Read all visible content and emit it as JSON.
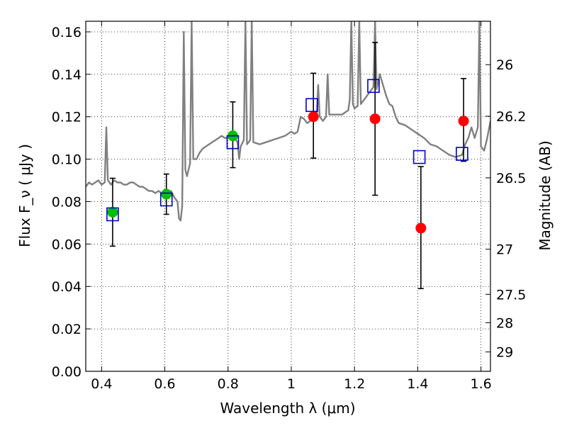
{
  "chart_data": {
    "type": "scatter",
    "xlabel": "Wavelength  λ (μm)",
    "ylabel": "Flux  F_ν  ( μJy )",
    "ylabel_right": "Magnitude (AB)",
    "xlim": [
      0.35,
      1.63
    ],
    "ylim": [
      0.0,
      0.165
    ],
    "grid": true,
    "x_ticks": [
      0.4,
      0.6,
      0.8,
      1.0,
      1.2,
      1.4,
      1.6
    ],
    "x_tick_labels": [
      "0.4",
      "0.6",
      "0.8",
      "1",
      "1.2",
      "1.4",
      "1.6"
    ],
    "y_ticks": [
      0.0,
      0.02,
      0.04,
      0.06,
      0.08,
      0.1,
      0.12,
      0.14,
      0.16
    ],
    "y_tick_labels": [
      "0.00",
      "0.02",
      "0.04",
      "0.06",
      "0.08",
      "0.10",
      "0.12",
      "0.14",
      "0.16"
    ],
    "mag_ticks": [
      26,
      26.2,
      26.5,
      27,
      27.5,
      28,
      29
    ],
    "mag_tick_labels": [
      "26",
      "26.2",
      "26.5",
      "27",
      "27.5",
      "28",
      "29"
    ],
    "model_spectrum": {
      "name": "model SED",
      "color": "#808080",
      "points": [
        [
          0.35,
          0.087
        ],
        [
          0.36,
          0.089
        ],
        [
          0.37,
          0.088
        ],
        [
          0.38,
          0.089
        ],
        [
          0.39,
          0.09
        ],
        [
          0.4,
          0.088
        ],
        [
          0.41,
          0.089
        ],
        [
          0.415,
          0.115
        ],
        [
          0.42,
          0.09
        ],
        [
          0.43,
          0.088
        ],
        [
          0.44,
          0.09
        ],
        [
          0.45,
          0.089
        ],
        [
          0.46,
          0.089
        ],
        [
          0.47,
          0.088
        ],
        [
          0.48,
          0.088
        ],
        [
          0.49,
          0.089
        ],
        [
          0.5,
          0.089
        ],
        [
          0.51,
          0.088
        ],
        [
          0.52,
          0.087
        ],
        [
          0.53,
          0.087
        ],
        [
          0.54,
          0.086
        ],
        [
          0.55,
          0.085
        ],
        [
          0.56,
          0.085
        ],
        [
          0.57,
          0.084
        ],
        [
          0.58,
          0.085
        ],
        [
          0.59,
          0.084
        ],
        [
          0.6,
          0.083
        ],
        [
          0.61,
          0.083
        ],
        [
          0.62,
          0.085
        ],
        [
          0.63,
          0.082
        ],
        [
          0.64,
          0.08
        ],
        [
          0.645,
          0.072
        ],
        [
          0.65,
          0.071
        ],
        [
          0.655,
          0.078
        ],
        [
          0.66,
          0.16
        ],
        [
          0.665,
          0.095
        ],
        [
          0.67,
          0.092
        ],
        [
          0.68,
          0.098
        ],
        [
          0.685,
          0.165
        ],
        [
          0.69,
          0.1
        ],
        [
          0.7,
          0.1
        ],
        [
          0.71,
          0.103
        ],
        [
          0.72,
          0.105
        ],
        [
          0.73,
          0.106
        ],
        [
          0.74,
          0.107
        ],
        [
          0.75,
          0.108
        ],
        [
          0.76,
          0.109
        ],
        [
          0.77,
          0.11
        ],
        [
          0.78,
          0.111
        ],
        [
          0.79,
          0.11
        ],
        [
          0.8,
          0.11
        ],
        [
          0.81,
          0.112
        ],
        [
          0.82,
          0.11
        ],
        [
          0.83,
          0.108
        ],
        [
          0.835,
          0.1
        ],
        [
          0.84,
          0.106
        ],
        [
          0.85,
          0.109
        ],
        [
          0.855,
          0.165
        ],
        [
          0.86,
          0.107
        ],
        [
          0.87,
          0.109
        ],
        [
          0.875,
          0.165
        ],
        [
          0.88,
          0.108
        ],
        [
          0.9,
          0.107
        ],
        [
          0.92,
          0.108
        ],
        [
          0.94,
          0.109
        ],
        [
          0.96,
          0.11
        ],
        [
          0.98,
          0.111
        ],
        [
          1.0,
          0.113
        ],
        [
          1.01,
          0.112
        ],
        [
          1.02,
          0.113
        ],
        [
          1.03,
          0.12
        ],
        [
          1.04,
          0.119
        ],
        [
          1.05,
          0.117
        ],
        [
          1.06,
          0.118
        ],
        [
          1.07,
          0.119
        ],
        [
          1.08,
          0.119
        ],
        [
          1.085,
          0.135
        ],
        [
          1.09,
          0.12
        ],
        [
          1.1,
          0.118
        ],
        [
          1.11,
          0.12
        ],
        [
          1.115,
          0.14
        ],
        [
          1.12,
          0.121
        ],
        [
          1.13,
          0.121
        ],
        [
          1.14,
          0.121
        ],
        [
          1.15,
          0.121
        ],
        [
          1.16,
          0.121
        ],
        [
          1.17,
          0.122
        ],
        [
          1.18,
          0.123
        ],
        [
          1.185,
          0.128
        ],
        [
          1.19,
          0.165
        ],
        [
          1.195,
          0.126
        ],
        [
          1.2,
          0.124
        ],
        [
          1.21,
          0.125
        ],
        [
          1.215,
          0.165
        ],
        [
          1.22,
          0.126
        ],
        [
          1.23,
          0.128
        ],
        [
          1.24,
          0.13
        ],
        [
          1.25,
          0.132
        ],
        [
          1.26,
          0.134
        ],
        [
          1.265,
          0.165
        ],
        [
          1.27,
          0.133
        ],
        [
          1.28,
          0.14
        ],
        [
          1.29,
          0.135
        ],
        [
          1.3,
          0.13
        ],
        [
          1.31,
          0.126
        ],
        [
          1.32,
          0.125
        ],
        [
          1.33,
          0.12
        ],
        [
          1.34,
          0.117
        ],
        [
          1.36,
          0.116
        ],
        [
          1.38,
          0.114
        ],
        [
          1.4,
          0.112
        ],
        [
          1.42,
          0.11
        ],
        [
          1.44,
          0.107
        ],
        [
          1.46,
          0.106
        ],
        [
          1.48,
          0.104
        ],
        [
          1.5,
          0.102
        ],
        [
          1.52,
          0.101
        ],
        [
          1.54,
          0.102
        ],
        [
          1.55,
          0.107
        ],
        [
          1.56,
          0.11
        ],
        [
          1.57,
          0.115
        ],
        [
          1.58,
          0.11
        ],
        [
          1.59,
          0.115
        ],
        [
          1.595,
          0.165
        ],
        [
          1.6,
          0.106
        ],
        [
          1.61,
          0.104
        ],
        [
          1.62,
          0.11
        ],
        [
          1.63,
          0.118
        ]
      ]
    },
    "series": [
      {
        "name": "green detections",
        "marker": "circle",
        "color": "#00c000",
        "points": [
          {
            "x": 0.435,
            "y": 0.075,
            "err_lo": 0.059,
            "err_hi": 0.091
          },
          {
            "x": 0.605,
            "y": 0.0835,
            "err_lo": 0.074,
            "err_hi": 0.093
          },
          {
            "x": 0.815,
            "y": 0.111,
            "err_lo": 0.096,
            "err_hi": 0.127
          }
        ]
      },
      {
        "name": "red detections",
        "marker": "circle",
        "color": "#ff0000",
        "points": [
          {
            "x": 1.07,
            "y": 0.12,
            "err_lo": 0.1005,
            "err_hi": 0.1405
          },
          {
            "x": 1.265,
            "y": 0.119,
            "err_lo": 0.083,
            "err_hi": 0.155
          },
          {
            "x": 1.41,
            "y": 0.0675,
            "err_lo": 0.039,
            "err_hi": 0.0965
          },
          {
            "x": 1.545,
            "y": 0.118,
            "err_lo": 0.099,
            "err_hi": 0.138
          }
        ]
      },
      {
        "name": "model photometry",
        "marker": "square-open",
        "color": "#0000cc",
        "points": [
          {
            "x": 0.435,
            "y": 0.074
          },
          {
            "x": 0.605,
            "y": 0.081
          },
          {
            "x": 0.815,
            "y": 0.108
          },
          {
            "x": 1.065,
            "y": 0.1255
          },
          {
            "x": 1.26,
            "y": 0.1345
          },
          {
            "x": 1.405,
            "y": 0.101
          },
          {
            "x": 1.54,
            "y": 0.1025
          }
        ]
      }
    ]
  }
}
